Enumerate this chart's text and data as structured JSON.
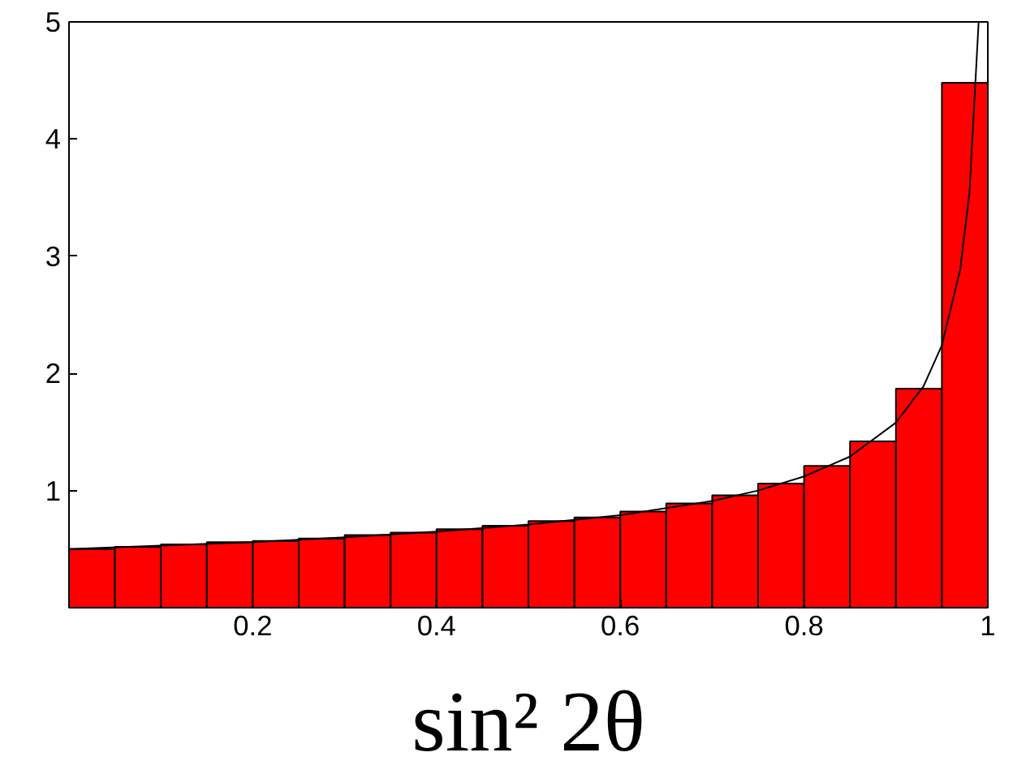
{
  "chart_data": {
    "type": "histogram",
    "xlabel": "sin² 2θ",
    "bins": [
      0,
      0.05,
      0.1,
      0.15,
      0.2,
      0.25,
      0.3,
      0.35,
      0.4,
      0.45,
      0.5,
      0.55,
      0.6,
      0.65,
      0.7,
      0.75,
      0.8,
      0.85,
      0.9,
      0.95,
      1
    ],
    "values": [
      0.5,
      0.52,
      0.54,
      0.56,
      0.57,
      0.59,
      0.62,
      0.64,
      0.67,
      0.7,
      0.74,
      0.77,
      0.82,
      0.89,
      0.96,
      1.06,
      1.21,
      1.42,
      1.87,
      4.48
    ],
    "color": "#ff0000",
    "series": [
      {
        "type": "line",
        "color": "#000000",
        "x": [
          0,
          0.1,
          0.2,
          0.3,
          0.4,
          0.5,
          0.6,
          0.7,
          0.75,
          0.8,
          0.85,
          0.9,
          0.93,
          0.95,
          0.97,
          0.98,
          0.99
        ],
        "values": [
          0.5,
          0.53,
          0.56,
          0.6,
          0.65,
          0.71,
          0.79,
          0.91,
          1.0,
          1.12,
          1.29,
          1.58,
          1.89,
          2.24,
          2.89,
          3.54,
          5.0
        ]
      }
    ],
    "xlim": [
      0,
      1
    ],
    "ylim": [
      0,
      5
    ],
    "xticks": [
      0.2,
      0.4,
      0.6,
      0.8,
      1
    ],
    "yticks": [
      1,
      2,
      3,
      4,
      5
    ],
    "grid": false
  }
}
